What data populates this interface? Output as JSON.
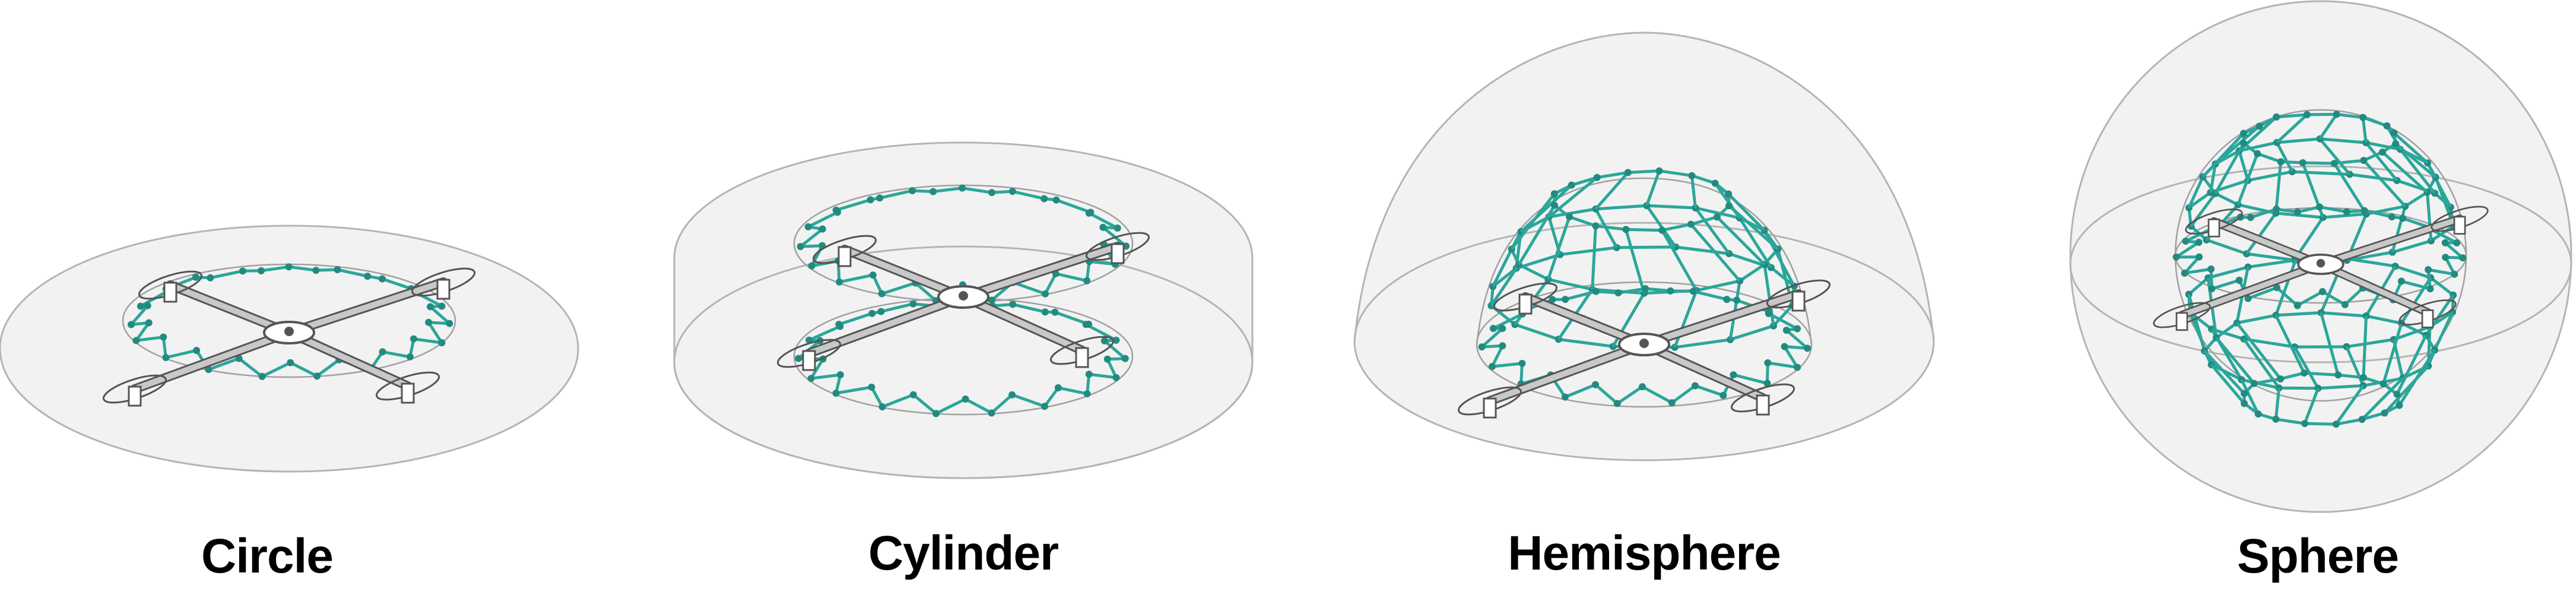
{
  "panels": [
    {
      "id": "circle",
      "label": "Circle"
    },
    {
      "id": "cylinder",
      "label": "Cylinder"
    },
    {
      "id": "hemisphere",
      "label": "Hemisphere"
    },
    {
      "id": "sphere",
      "label": "Sphere"
    }
  ],
  "colors": {
    "frame": "#2ba69a",
    "frame_node": "#238a80",
    "envelope_fill": "#f2f2f2",
    "envelope_stroke": "#b4b4b4",
    "drone_body": "#c8c8c8",
    "drone_outline": "#555555",
    "label": "#000000"
  },
  "icons": [
    "quadrotor-drone-icon",
    "tensegrity-frame-icon"
  ]
}
